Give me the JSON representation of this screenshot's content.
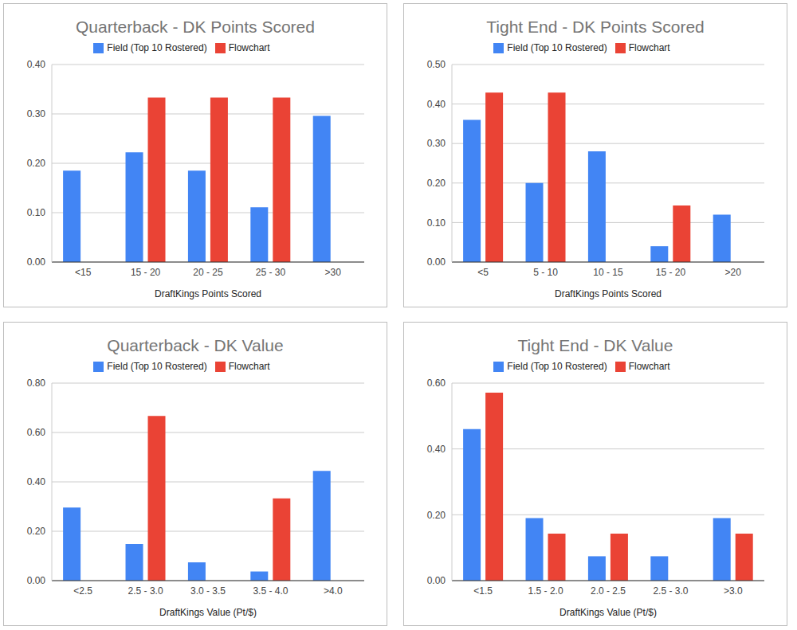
{
  "chart_data": [
    {
      "type": "bar",
      "title": "Quarterback - DK Points Scored",
      "x_label": "DraftKings Points Scored",
      "categories": [
        "<15",
        "15 - 20",
        "20 - 25",
        "25 - 30",
        ">30"
      ],
      "series": [
        {
          "name": "Field (Top 10 Rostered)",
          "color": "#4285f4",
          "values": [
            0.185,
            0.222,
            0.185,
            0.111,
            0.296
          ]
        },
        {
          "name": "Flowchart",
          "color": "#ea4335",
          "values": [
            0,
            0.333,
            0.333,
            0.333,
            0
          ]
        }
      ],
      "ylim": [
        0,
        0.4
      ],
      "yticks": [
        {
          "value": 0,
          "label": "0.00"
        },
        {
          "value": 0.1,
          "label": "0.10"
        },
        {
          "value": 0.2,
          "label": "0.20"
        },
        {
          "value": 0.3,
          "label": "0.30"
        },
        {
          "value": 0.4,
          "label": "0.40"
        }
      ],
      "grid": true,
      "legend": "top"
    },
    {
      "type": "bar",
      "title": "Tight End - DK Points Scored",
      "x_label": "DraftKings Points Scored",
      "categories": [
        "<5",
        "5 - 10",
        "10 - 15",
        "15 - 20",
        ">20"
      ],
      "series": [
        {
          "name": "Field (Top 10 Rostered)",
          "color": "#4285f4",
          "values": [
            0.36,
            0.2,
            0.28,
            0.04,
            0.12
          ]
        },
        {
          "name": "Flowchart",
          "color": "#ea4335",
          "values": [
            0.429,
            0.429,
            0,
            0.143,
            0
          ]
        }
      ],
      "ylim": [
        0,
        0.5
      ],
      "yticks": [
        {
          "value": 0,
          "label": "0.00"
        },
        {
          "value": 0.1,
          "label": "0.10"
        },
        {
          "value": 0.2,
          "label": "0.20"
        },
        {
          "value": 0.3,
          "label": "0.30"
        },
        {
          "value": 0.4,
          "label": "0.40"
        },
        {
          "value": 0.5,
          "label": "0.50"
        }
      ],
      "grid": true,
      "legend": "top"
    },
    {
      "type": "bar",
      "title": "Quarterback - DK Value",
      "x_label": "DraftKings Value (Pt/$)",
      "categories": [
        "<2.5",
        "2.5 - 3.0",
        "3.0 - 3.5",
        "3.5 - 4.0",
        ">4.0"
      ],
      "series": [
        {
          "name": "Field (Top 10 Rostered)",
          "color": "#4285f4",
          "values": [
            0.296,
            0.148,
            0.074,
            0.037,
            0.444
          ]
        },
        {
          "name": "Flowchart",
          "color": "#ea4335",
          "values": [
            0,
            0.667,
            0,
            0.333,
            0
          ]
        }
      ],
      "ylim": [
        0,
        0.8
      ],
      "yticks": [
        {
          "value": 0,
          "label": "0.00"
        },
        {
          "value": 0.2,
          "label": "0.20"
        },
        {
          "value": 0.4,
          "label": "0.40"
        },
        {
          "value": 0.6,
          "label": "0.60"
        },
        {
          "value": 0.8,
          "label": "0.80"
        }
      ],
      "grid": true,
      "legend": "top"
    },
    {
      "type": "bar",
      "title": "Tight End - DK Value",
      "x_label": "DraftKings Value (Pt/$)",
      "categories": [
        "<1.5",
        "1.5 - 2.0",
        "2.0 - 2.5",
        "2.5 - 3.0",
        ">3.0"
      ],
      "series": [
        {
          "name": "Field (Top 10 Rostered)",
          "color": "#4285f4",
          "values": [
            0.46,
            0.19,
            0.074,
            0.074,
            0.19
          ]
        },
        {
          "name": "Flowchart",
          "color": "#ea4335",
          "values": [
            0.571,
            0.143,
            0.143,
            0,
            0.143
          ]
        }
      ],
      "ylim": [
        0,
        0.6
      ],
      "yticks": [
        {
          "value": 0,
          "label": "0.00"
        },
        {
          "value": 0.2,
          "label": "0.20"
        },
        {
          "value": 0.4,
          "label": "0.40"
        },
        {
          "value": 0.6,
          "label": "0.60"
        }
      ],
      "grid": true,
      "legend": "top"
    }
  ]
}
